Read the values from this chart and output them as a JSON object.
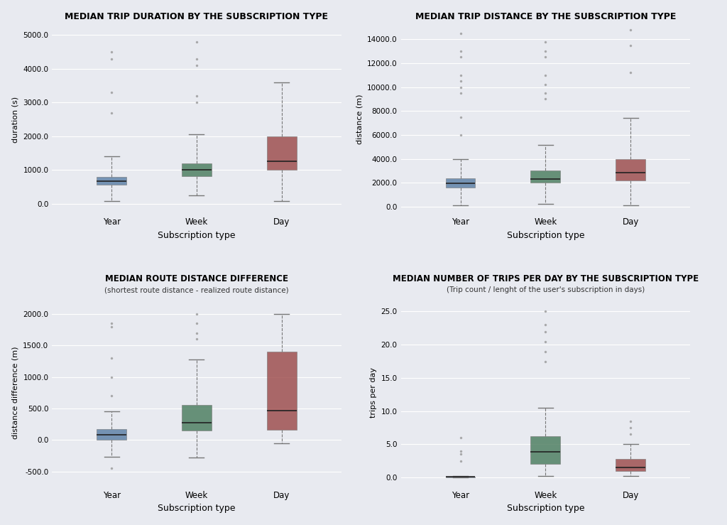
{
  "fig_bg_color": "#e8eaf0",
  "bg_color": "#e8eaf0",
  "box_colors": {
    "Year": "#5b7fa6",
    "Week": "#4a7c5e",
    "Day": "#9c4a4a"
  },
  "plots": [
    {
      "title": "MEDIAN TRIP DURATION BY THE SUBSCRIPTION TYPE",
      "subtitle": null,
      "ylabel": "duration (s)",
      "xlabel": "Subscription type",
      "ylim": [
        -300,
        5300
      ],
      "yticks": [
        0.0,
        1000.0,
        2000.0,
        3000.0,
        4000.0,
        5000.0
      ],
      "groups": [
        "Year",
        "Week",
        "Day"
      ],
      "stats": {
        "Year": {
          "med": 680,
          "q1": 560,
          "q3": 800,
          "whislo": 80,
          "whishi": 1400,
          "fliers_low": [],
          "fliers_high": [
            4500,
            4300,
            3300,
            2700
          ]
        },
        "Week": {
          "med": 1000,
          "q1": 820,
          "q3": 1200,
          "whislo": 250,
          "whishi": 2050,
          "fliers_low": [],
          "fliers_high": [
            4800,
            4300,
            4100,
            3200,
            3000
          ]
        },
        "Day": {
          "med": 1250,
          "q1": 1000,
          "q3": 2000,
          "whislo": 80,
          "whishi": 3600,
          "fliers_low": [],
          "fliers_high": []
        }
      }
    },
    {
      "title": "MEDIAN TRIP DISTANCE BY THE SUBSCRIPTION TYPE",
      "subtitle": null,
      "ylabel": "distance (m)",
      "xlabel": "Subscription type",
      "ylim": [
        -600,
        15200
      ],
      "yticks": [
        0.0,
        2000.0,
        4000.0,
        6000.0,
        8000.0,
        10000.0,
        12000.0,
        14000.0
      ],
      "groups": [
        "Year",
        "Week",
        "Day"
      ],
      "stats": {
        "Year": {
          "med": 1950,
          "q1": 1600,
          "q3": 2400,
          "whislo": 100,
          "whishi": 4000,
          "fliers_low": [],
          "fliers_high": [
            14500,
            13000,
            12500,
            11000,
            10500,
            10000,
            9500,
            7500,
            6000
          ]
        },
        "Week": {
          "med": 2300,
          "q1": 2000,
          "q3": 3050,
          "whislo": 250,
          "whishi": 5150,
          "fliers_low": [],
          "fliers_high": [
            13800,
            13000,
            12500,
            11000,
            10200,
            9500,
            9000
          ]
        },
        "Day": {
          "med": 2850,
          "q1": 2200,
          "q3": 4000,
          "whislo": 100,
          "whishi": 7400,
          "fliers_low": [],
          "fliers_high": [
            14800,
            13500,
            11200
          ]
        }
      }
    },
    {
      "title": "MEDIAN ROUTE DISTANCE DIFFERENCE",
      "subtitle": "(shortest route distance - realized route distance)",
      "ylabel": "distance difference (m)",
      "xlabel": "Subscription type",
      "ylim": [
        -750,
        2250
      ],
      "yticks": [
        -500.0,
        0.0,
        500.0,
        1000.0,
        1500.0,
        2000.0
      ],
      "groups": [
        "Year",
        "Week",
        "Day"
      ],
      "stats": {
        "Year": {
          "med": 80,
          "q1": 10,
          "q3": 170,
          "whislo": -270,
          "whishi": 450,
          "fliers_low": [
            -450
          ],
          "fliers_high": [
            1850,
            1800,
            1300,
            1000,
            700
          ]
        },
        "Week": {
          "med": 280,
          "q1": 150,
          "q3": 560,
          "whislo": -280,
          "whishi": 1280,
          "fliers_low": [],
          "fliers_high": [
            2000,
            1850,
            1700,
            1600
          ]
        },
        "Day": {
          "med": 470,
          "q1": 160,
          "q3": 1400,
          "whislo": -50,
          "whishi": 2000,
          "fliers_low": [],
          "fliers_high": []
        }
      }
    },
    {
      "title": "MEDIAN NUMBER OF TRIPS PER DAY BY THE SUBSCRIPTION TYPE",
      "subtitle": "(Trip count / lenght of the user's subscription in days)",
      "ylabel": "trips per day",
      "xlabel": "Subscription type",
      "ylim": [
        -1.5,
        27
      ],
      "yticks": [
        0.0,
        5.0,
        10.0,
        15.0,
        20.0,
        25.0
      ],
      "groups": [
        "Year",
        "Week",
        "Day"
      ],
      "stats": {
        "Year": {
          "med": 0.05,
          "q1": 0.02,
          "q3": 0.1,
          "whislo": 0.0,
          "whishi": 0.25,
          "fliers_low": [],
          "fliers_high": [
            6.0,
            4.0,
            3.5,
            2.5
          ]
        },
        "Week": {
          "med": 3.8,
          "q1": 2.0,
          "q3": 6.2,
          "whislo": 0.2,
          "whishi": 10.5,
          "fliers_low": [],
          "fliers_high": [
            25.0,
            23.0,
            22.0,
            20.5,
            19.0,
            17.5
          ]
        },
        "Day": {
          "med": 1.5,
          "q1": 1.0,
          "q3": 2.8,
          "whislo": 0.2,
          "whishi": 5.0,
          "fliers_low": [],
          "fliers_high": [
            8.5,
            7.5,
            6.5
          ]
        }
      }
    }
  ]
}
